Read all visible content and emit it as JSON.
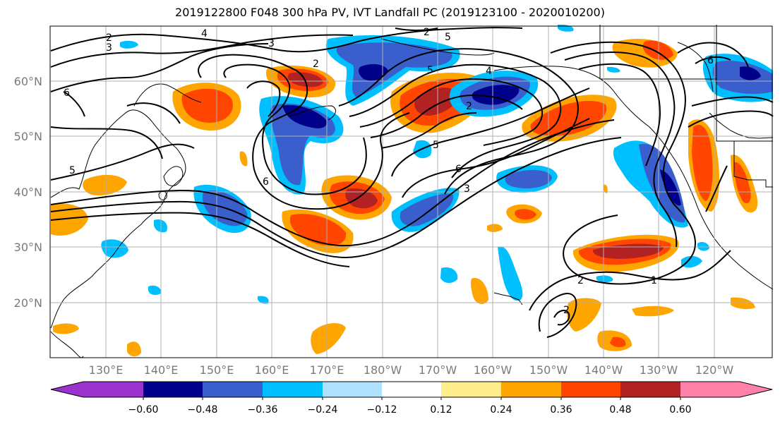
{
  "title": "2019122800 F048 300 hPa PV, IVT Landfall PC (2019123100 - 2020010200)",
  "lat_labels": [
    "60°N",
    "50°N",
    "40°N",
    "30°N",
    "20°N"
  ],
  "lon_labels": [
    "130°E",
    "140°E",
    "150°E",
    "160°E",
    "170°E",
    "180°W",
    "170°W",
    "160°W",
    "150°W",
    "140°W",
    "130°W",
    "120°W"
  ],
  "colorbar": {
    "tick_labels": [
      "−0.60",
      "−0.48",
      "−0.36",
      "−0.24",
      "−0.12",
      "0.12",
      "0.24",
      "0.36",
      "0.48",
      "0.60"
    ],
    "colors": [
      "#9a32cd",
      "#00008b",
      "#3a5fcd",
      "#00bfff",
      "#b0e2ff",
      "#ffffff",
      "#ffec8b",
      "#ffa500",
      "#ff4500",
      "#b22222",
      "#ff82ab"
    ]
  },
  "contour_labels": [
    "2",
    "3",
    "4",
    "6",
    "5",
    "3",
    "2",
    "6",
    "5",
    "2",
    "5",
    "2",
    "4",
    "6",
    "5",
    "3",
    "6",
    "2",
    "1",
    "2"
  ]
}
